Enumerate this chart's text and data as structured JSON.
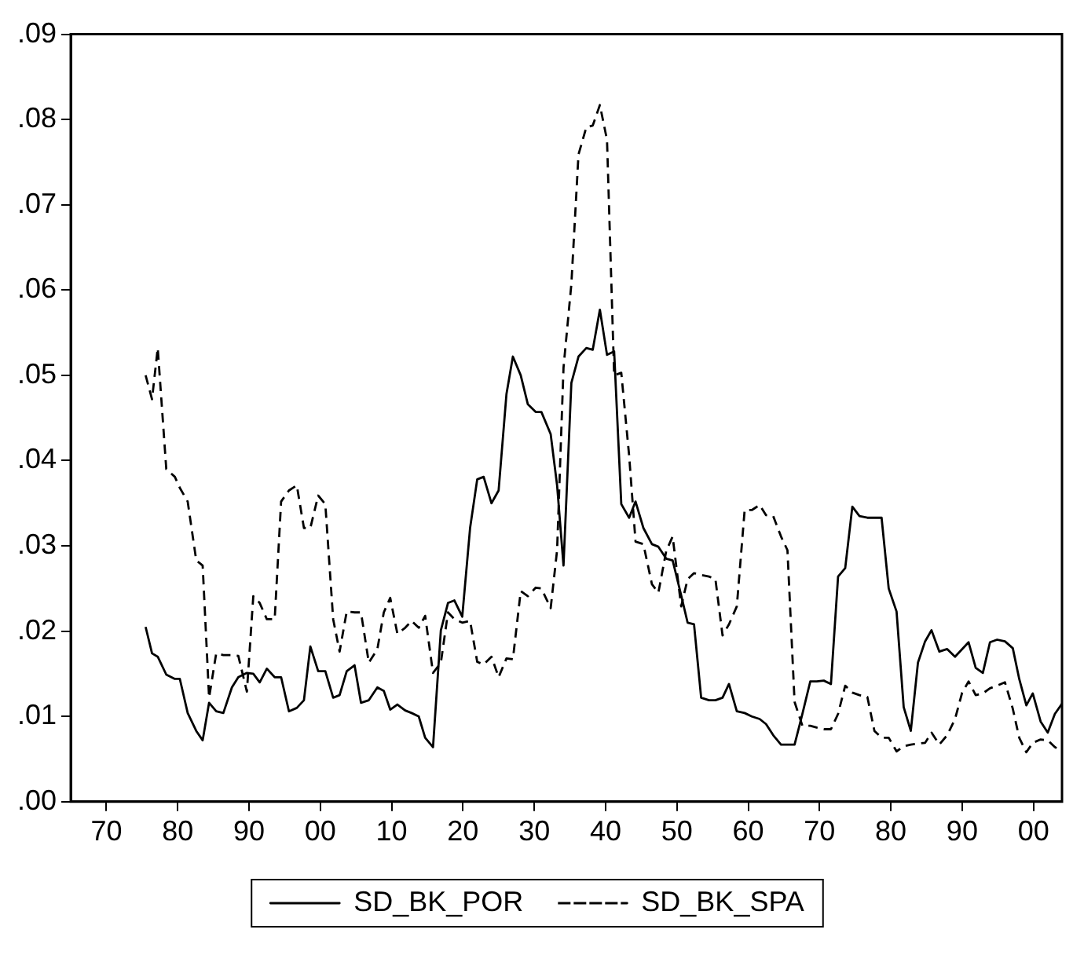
{
  "chart_data": {
    "type": "line",
    "x": [
      1875.5,
      1876.4,
      1877.2,
      1878.4,
      1879.6,
      1880.3,
      1881.4,
      1882.6,
      1883.5,
      1884.4,
      1885.4,
      1886.4,
      1887.6,
      1888.5,
      1889.7,
      1890.6,
      1891.5,
      1892.5,
      1893.6,
      1894.5,
      1895.6,
      1896.7,
      1897.7,
      1898.6,
      1899.7,
      1900.7,
      1901.8,
      1902.7,
      1903.7,
      1904.8,
      1905.7,
      1906.8,
      1908,
      1908.9,
      1909.8,
      1910.8,
      1911.9,
      1912.8,
      1913.8,
      1914.7,
      1915.8,
      1916.9,
      1917.9,
      1918.8,
      1919.9,
      1921,
      1922,
      1922.9,
      1924,
      1925,
      1926.1,
      1927,
      1928.1,
      1929.1,
      1930.2,
      1931,
      1932.3,
      1933.2,
      1934.1,
      1935.2,
      1936.2,
      1937.3,
      1938.2,
      1939.2,
      1940.2,
      1941.2,
      1942.2,
      1943.3,
      1944.2,
      1945.3,
      1946.5,
      1947.4,
      1948.5,
      1949.4,
      1950.6,
      1951.5,
      1952.4,
      1953.4,
      1954.5,
      1955.4,
      1956.4,
      1957.3,
      1958.4,
      1959.5,
      1960.5,
      1961.6,
      1962.5,
      1963.5,
      1964.6,
      1965.5,
      1966.5,
      1967.6,
      1968.7,
      1969.6,
      1970.6,
      1971.6,
      1972.6,
      1973.6,
      1974.6,
      1975.6,
      1976.7,
      1977.7,
      1978.7,
      1979.7,
      1980.8,
      1981.8,
      1982.8,
      1983.8,
      1984.8,
      1985.7,
      1986.8,
      1987.9,
      1989,
      1990,
      1990.9,
      1991.9,
      1992.9,
      1993.9,
      1994.9,
      1996,
      1997.1,
      1998,
      1999,
      1999.9,
      2001,
      2002,
      2003,
      2004
    ],
    "series": [
      {
        "name": "SD_BK_POR",
        "color": "#000000",
        "line_style": "solid",
        "values": [
          0.0205,
          0.0174,
          0.017,
          0.0149,
          0.0144,
          0.0144,
          0.0104,
          0.0083,
          0.0072,
          0.0116,
          0.0106,
          0.0104,
          0.0134,
          0.0146,
          0.0151,
          0.015,
          0.014,
          0.0156,
          0.0146,
          0.0146,
          0.0106,
          0.011,
          0.0119,
          0.0182,
          0.0153,
          0.0153,
          0.0122,
          0.0125,
          0.0153,
          0.016,
          0.0116,
          0.0119,
          0.0134,
          0.013,
          0.0108,
          0.0114,
          0.0107,
          0.0104,
          0.01,
          0.0075,
          0.0064,
          0.0201,
          0.0233,
          0.0236,
          0.0217,
          0.0321,
          0.0378,
          0.0381,
          0.035,
          0.0365,
          0.0478,
          0.0522,
          0.05,
          0.0466,
          0.0457,
          0.0457,
          0.0431,
          0.0371,
          0.0277,
          0.0491,
          0.0522,
          0.0532,
          0.053,
          0.0577,
          0.0524,
          0.0528,
          0.0349,
          0.0333,
          0.0352,
          0.0321,
          0.0302,
          0.0299,
          0.0285,
          0.0283,
          0.0242,
          0.021,
          0.0208,
          0.0122,
          0.0119,
          0.0119,
          0.0122,
          0.0138,
          0.0106,
          0.0104,
          0.01,
          0.0097,
          0.0091,
          0.0078,
          0.0067,
          0.0067,
          0.0067,
          0.0103,
          0.0141,
          0.0141,
          0.0142,
          0.0138,
          0.0264,
          0.0274,
          0.0346,
          0.0335,
          0.0333,
          0.0333,
          0.0333,
          0.025,
          0.0223,
          0.0111,
          0.0083,
          0.0163,
          0.0188,
          0.0201,
          0.0176,
          0.0179,
          0.017,
          0.0179,
          0.0187,
          0.0157,
          0.0151,
          0.0187,
          0.019,
          0.0188,
          0.018,
          0.0144,
          0.0113,
          0.0127,
          0.0094,
          0.0081,
          0.0103,
          0.0115
        ]
      },
      {
        "name": "SD_BK_SPA",
        "color": "#000000",
        "line_style": "dashed",
        "values": [
          0.05,
          0.0472,
          0.0532,
          0.039,
          0.0381,
          0.0368,
          0.0352,
          0.0283,
          0.0277,
          0.0122,
          0.0174,
          0.0172,
          0.0172,
          0.0171,
          0.0129,
          0.0241,
          0.0233,
          0.0214,
          0.0214,
          0.0352,
          0.0365,
          0.0371,
          0.0321,
          0.0321,
          0.0359,
          0.0349,
          0.0214,
          0.0176,
          0.0223,
          0.0222,
          0.0222,
          0.0163,
          0.0179,
          0.0222,
          0.0239,
          0.0197,
          0.0204,
          0.0212,
          0.0204,
          0.0218,
          0.0151,
          0.0163,
          0.0222,
          0.0214,
          0.021,
          0.0212,
          0.0164,
          0.0161,
          0.017,
          0.0146,
          0.0168,
          0.0167,
          0.0247,
          0.0241,
          0.0251,
          0.025,
          0.0227,
          0.0295,
          0.0509,
          0.0607,
          0.0759,
          0.0791,
          0.0793,
          0.0817,
          0.0776,
          0.05,
          0.0503,
          0.0406,
          0.0305,
          0.0302,
          0.0255,
          0.0245,
          0.0294,
          0.0311,
          0.0229,
          0.0261,
          0.0268,
          0.0266,
          0.0264,
          0.0261,
          0.0195,
          0.0208,
          0.0229,
          0.0342,
          0.0342,
          0.0348,
          0.0336,
          0.0335,
          0.0311,
          0.0295,
          0.0117,
          0.0089,
          0.0089,
          0.0087,
          0.0085,
          0.0085,
          0.0103,
          0.0136,
          0.0128,
          0.0125,
          0.0123,
          0.0083,
          0.0075,
          0.0075,
          0.0059,
          0.0065,
          0.0067,
          0.0068,
          0.0069,
          0.0081,
          0.0067,
          0.0078,
          0.0097,
          0.0128,
          0.0141,
          0.0125,
          0.0127,
          0.0133,
          0.0136,
          0.014,
          0.0109,
          0.0075,
          0.0058,
          0.0069,
          0.0073,
          0.0072,
          0.0064,
          0.0059
        ]
      }
    ],
    "xlim": [
      1865,
      2004
    ],
    "xticks": [
      {
        "value": 1870,
        "label": "70"
      },
      {
        "value": 1880,
        "label": "80"
      },
      {
        "value": 1890,
        "label": "90"
      },
      {
        "value": 1900,
        "label": "00"
      },
      {
        "value": 1910,
        "label": "10"
      },
      {
        "value": 1920,
        "label": "20"
      },
      {
        "value": 1930,
        "label": "30"
      },
      {
        "value": 1940,
        "label": "40"
      },
      {
        "value": 1950,
        "label": "50"
      },
      {
        "value": 1960,
        "label": "60"
      },
      {
        "value": 1970,
        "label": "70"
      },
      {
        "value": 1980,
        "label": "80"
      },
      {
        "value": 1990,
        "label": "90"
      },
      {
        "value": 2000,
        "label": "00"
      }
    ],
    "ylim": [
      0,
      0.09
    ],
    "yticks": [
      {
        "value": 0,
        "label": ".00"
      },
      {
        "value": 0.01,
        "label": ".01"
      },
      {
        "value": 0.02,
        "label": ".02"
      },
      {
        "value": 0.03,
        "label": ".03"
      },
      {
        "value": 0.04,
        "label": ".04"
      },
      {
        "value": 0.05,
        "label": ".05"
      },
      {
        "value": 0.06,
        "label": ".06"
      },
      {
        "value": 0.07,
        "label": ".07"
      },
      {
        "value": 0.08,
        "label": ".08"
      },
      {
        "value": 0.09,
        "label": ".09"
      }
    ],
    "grid": false,
    "legend": "bottom",
    "marker": "none"
  }
}
